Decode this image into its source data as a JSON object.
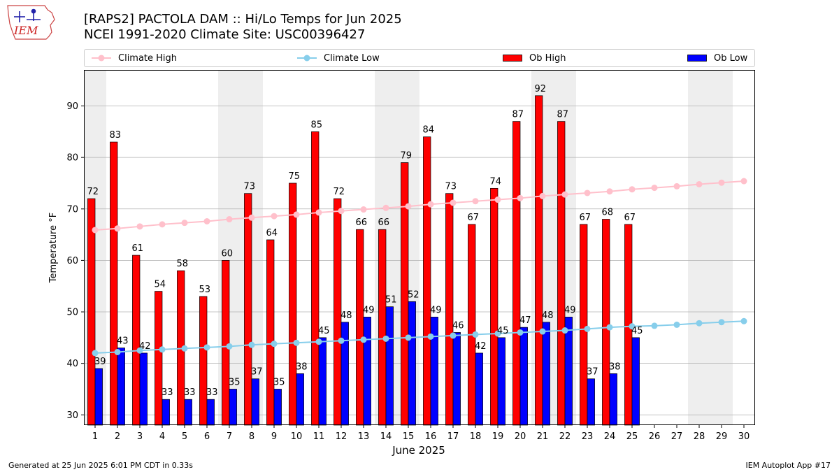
{
  "header": {
    "title_line1": "[RAPS2] PACTOLA DAM :: Hi/Lo Temps for Jun 2025",
    "title_line2": "NCEI 1991-2020 Climate Site: USC00396427",
    "logo_text": "IEM"
  },
  "footer": {
    "generated": "Generated at 25 Jun 2025 6:01 PM CDT in 0.33s",
    "app": "IEM Autoplot App #17"
  },
  "colors": {
    "climate_high": "#ffc0cb",
    "climate_low": "#87ceeb",
    "ob_high": "#ff0000",
    "ob_low": "#0000ff",
    "weekend_shade": "#eeeeee",
    "grid": "#b0b0b0"
  },
  "chart_data": {
    "type": "bar",
    "xlabel": "June 2025",
    "ylabel": "Temperature °F",
    "xlim": [
      0.5,
      30.5
    ],
    "ylim": [
      28,
      97
    ],
    "yticks": [
      30,
      40,
      50,
      60,
      70,
      80,
      90
    ],
    "grid": "y",
    "legend_position": "top",
    "legend": [
      "Climate High",
      "Climate Low",
      "Ob High",
      "Ob Low"
    ],
    "days": [
      1,
      2,
      3,
      4,
      5,
      6,
      7,
      8,
      9,
      10,
      11,
      12,
      13,
      14,
      15,
      16,
      17,
      18,
      19,
      20,
      21,
      22,
      23,
      24,
      25,
      26,
      27,
      28,
      29,
      30
    ],
    "shaded_days": [
      1,
      7,
      8,
      14,
      15,
      21,
      22,
      28,
      29
    ],
    "series": [
      {
        "name": "Ob High",
        "kind": "bar",
        "values": [
          72,
          83,
          61,
          54,
          58,
          53,
          60,
          73,
          64,
          75,
          85,
          72,
          66,
          66,
          79,
          84,
          73,
          67,
          74,
          87,
          92,
          87,
          67,
          68,
          67
        ]
      },
      {
        "name": "Ob Low",
        "kind": "bar",
        "values": [
          39,
          43,
          42,
          33,
          33,
          33,
          35,
          37,
          35,
          38,
          45,
          48,
          49,
          51,
          52,
          49,
          46,
          42,
          45,
          47,
          48,
          49,
          37,
          38,
          45
        ]
      },
      {
        "name": "Climate High",
        "kind": "line",
        "values": [
          65.9,
          66.2,
          66.6,
          67.0,
          67.3,
          67.6,
          68.0,
          68.3,
          68.6,
          68.9,
          69.3,
          69.6,
          69.9,
          70.2,
          70.5,
          70.9,
          71.2,
          71.5,
          71.8,
          72.1,
          72.5,
          72.8,
          73.1,
          73.4,
          73.8,
          74.1,
          74.4,
          74.8,
          75.1,
          75.4
        ]
      },
      {
        "name": "Climate Low",
        "kind": "line",
        "values": [
          42.0,
          42.2,
          42.5,
          42.7,
          42.9,
          43.1,
          43.3,
          43.6,
          43.8,
          44.0,
          44.2,
          44.4,
          44.6,
          44.8,
          45.0,
          45.2,
          45.4,
          45.6,
          45.8,
          46.0,
          46.2,
          46.4,
          46.7,
          47.0,
          47.2,
          47.3,
          47.5,
          47.8,
          48.0,
          48.2
        ]
      }
    ]
  }
}
